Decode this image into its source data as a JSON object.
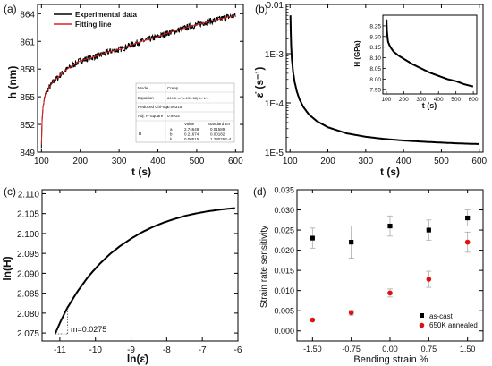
{
  "chart_data": [
    {
      "panel": "(a)",
      "type": "line",
      "xlabel": "t (s)",
      "ylabel": "h (nm)",
      "xlim": [
        90,
        620
      ],
      "ylim": [
        849,
        865
      ],
      "xticks": [
        100,
        200,
        300,
        400,
        500,
        600
      ],
      "yticks": [
        849,
        852,
        855,
        858,
        861,
        864
      ],
      "legend": {
        "placement": "top-left"
      },
      "series": [
        {
          "name": "Experimental data",
          "color": "#000000",
          "x": [
            100,
            101,
            102,
            104,
            107,
            110,
            115,
            120,
            130,
            140,
            150,
            160,
            180,
            200,
            225,
            250,
            275,
            300,
            325,
            350,
            375,
            400,
            425,
            450,
            475,
            500,
            525,
            550,
            575,
            600
          ],
          "values": [
            849.8,
            851.5,
            852.8,
            853.8,
            854.6,
            855.2,
            855.7,
            856.0,
            856.6,
            857.0,
            857.4,
            857.8,
            858.4,
            858.9,
            859.2,
            859.5,
            859.9,
            860.1,
            860.5,
            860.9,
            861.2,
            861.5,
            861.9,
            862.2,
            862.5,
            862.8,
            863.1,
            863.3,
            863.6,
            863.8
          ],
          "noise": 0.35
        },
        {
          "name": "Fitting line",
          "color": "#e02020",
          "x": [
            100,
            101,
            102,
            104,
            107,
            110,
            115,
            120,
            130,
            140,
            150,
            160,
            180,
            200,
            225,
            250,
            275,
            300,
            325,
            350,
            375,
            400,
            425,
            450,
            475,
            500,
            525,
            550,
            575,
            600
          ],
          "values": [
            849.8,
            851.5,
            852.8,
            853.8,
            854.6,
            855.2,
            855.7,
            856.0,
            856.6,
            857.0,
            857.4,
            857.8,
            858.4,
            858.9,
            859.2,
            859.5,
            859.9,
            860.1,
            860.5,
            860.9,
            861.2,
            861.5,
            861.9,
            862.2,
            862.5,
            862.8,
            863.1,
            863.3,
            863.6,
            863.8
          ]
        }
      ],
      "fit_table": {
        "rows": [
          [
            "Model",
            "Creep"
          ],
          [
            "Equation",
            "849.6+a*(x-100.68)^b+k*x"
          ],
          [
            "Reduced Chi-Sqr",
            "0.06315"
          ],
          [
            "Adj. R-Square",
            "0.9915"
          ]
        ],
        "col_headers": [
          "",
          "",
          "Value",
          "Standard Err"
        ],
        "param_label": "B",
        "params": [
          [
            "a",
            "2.74648",
            "0.01589"
          ],
          [
            "b",
            "0.21674",
            "0.00182"
          ],
          [
            "k",
            "0.00515",
            "1.29025E-4"
          ]
        ]
      }
    },
    {
      "panel": "(b)",
      "type": "line",
      "xlabel": "t (s)",
      "ylabel_prefix": "ε̇",
      "ylabel_unit": "(s⁻¹)",
      "yscale": "log",
      "xlim": [
        90,
        610
      ],
      "ylim": [
        1e-05,
        0.01
      ],
      "xticks": [
        100,
        200,
        300,
        400,
        500,
        600
      ],
      "ytick_labels": [
        "1E-5",
        "1E-4",
        "1E-3",
        "0.01"
      ],
      "series": [
        {
          "name": "",
          "color": "#000000",
          "x": [
            101,
            102,
            103,
            105,
            108,
            112,
            118,
            125,
            135,
            150,
            170,
            200,
            250,
            300,
            350,
            400,
            450,
            500,
            550,
            600
          ],
          "values": [
            0.006,
            0.0025,
            0.0014,
            0.00075,
            0.00043,
            0.00027,
            0.00017,
            0.000118,
            8.3e-05,
            5.8e-05,
            4.3e-05,
            3.2e-05,
            2.4e-05,
            2.05e-05,
            1.85e-05,
            1.72e-05,
            1.63e-05,
            1.56e-05,
            1.5e-05,
            1.46e-05
          ]
        }
      ],
      "inset": {
        "type": "line",
        "xlabel": "t (s)",
        "ylabel": "H (GPa)",
        "xlim": [
          80,
          620
        ],
        "ylim": [
          7.93,
          8.3
        ],
        "xticks": [
          100,
          200,
          300,
          400,
          500,
          600
        ],
        "yticks": [
          7.95,
          8.0,
          8.05,
          8.1,
          8.15,
          8.2,
          8.25
        ],
        "ytick_labels": [
          "7.95",
          "8.00",
          "8.05",
          "8.10",
          "8.15",
          "8.20",
          "8.25"
        ],
        "x": [
          101,
          103,
          106,
          110,
          120,
          140,
          170,
          200,
          250,
          300,
          350,
          400,
          450,
          500,
          550,
          600
        ],
        "values": [
          8.28,
          8.23,
          8.2,
          8.175,
          8.155,
          8.13,
          8.11,
          8.095,
          8.07,
          8.05,
          8.03,
          8.015,
          8.0,
          7.99,
          7.975,
          7.965
        ]
      }
    },
    {
      "panel": "(c)",
      "type": "line",
      "xlabel": "ln(ε̇)",
      "ylabel": "ln(H)",
      "xlim": [
        -11.5,
        -6
      ],
      "ylim": [
        2.073,
        2.111
      ],
      "xticks": [
        -11,
        -10,
        -9,
        -8,
        -7,
        -6
      ],
      "yticks": [
        2.075,
        2.08,
        2.085,
        2.09,
        2.095,
        2.1,
        2.105,
        2.11
      ],
      "ytick_labels": [
        "2.075",
        "2.080",
        "2.085",
        "2.090",
        "2.095",
        "2.100",
        "2.105",
        "2.110"
      ],
      "series": [
        {
          "name": "",
          "color": "#000000",
          "x": [
            -11.13,
            -11.0,
            -10.8,
            -10.5,
            -10.2,
            -9.9,
            -9.6,
            -9.3,
            -9.0,
            -8.7,
            -8.4,
            -8.1,
            -7.8,
            -7.5,
            -7.2,
            -6.9,
            -6.6,
            -6.3,
            -6.05
          ],
          "values": [
            2.0748,
            2.0775,
            2.0812,
            2.0855,
            2.0892,
            2.0922,
            2.0948,
            2.0969,
            2.0987,
            2.1003,
            2.1016,
            2.1027,
            2.1036,
            2.1044,
            2.105,
            2.1055,
            2.1059,
            2.1062,
            2.1064
          ]
        }
      ],
      "annotation": {
        "text": "m=0.0275"
      }
    },
    {
      "panel": "(d)",
      "type": "scatter",
      "xlabel": "Bending strain %",
      "ylabel": "Strain rate sensitivity",
      "xlim": [
        -1.8,
        1.8
      ],
      "ylim": [
        -0.0025,
        0.035
      ],
      "xticks": [
        -1.5,
        -0.75,
        0,
        0.75,
        1.5
      ],
      "xtick_labels": [
        "-1.50",
        "-0.75",
        "0.00",
        "0.75",
        "1.50"
      ],
      "yticks": [
        0,
        0.005,
        0.01,
        0.015,
        0.02,
        0.025,
        0.03,
        0.035
      ],
      "ytick_labels": [
        "0.000",
        "0.005",
        "0.010",
        "0.015",
        "0.020",
        "0.025",
        "0.030",
        "0.035"
      ],
      "legend": {
        "placement": "bottom-right"
      },
      "series": [
        {
          "name": "as-cast",
          "color": "#000000",
          "marker": "square",
          "x": [
            -1.5,
            -0.75,
            0,
            0.75,
            1.5
          ],
          "values": [
            0.023,
            0.022,
            0.026,
            0.025,
            0.028
          ],
          "errors": [
            0.0025,
            0.004,
            0.0025,
            0.0025,
            0.002
          ]
        },
        {
          "name": "650K annealed",
          "color": "#e01010",
          "marker": "circle",
          "x": [
            -1.5,
            -0.75,
            0,
            0.75,
            1.5
          ],
          "values": [
            0.0027,
            0.0045,
            0.0094,
            0.0128,
            0.022
          ],
          "errors": [
            0,
            0.0006,
            0.001,
            0.002,
            0.0025
          ]
        }
      ]
    }
  ]
}
